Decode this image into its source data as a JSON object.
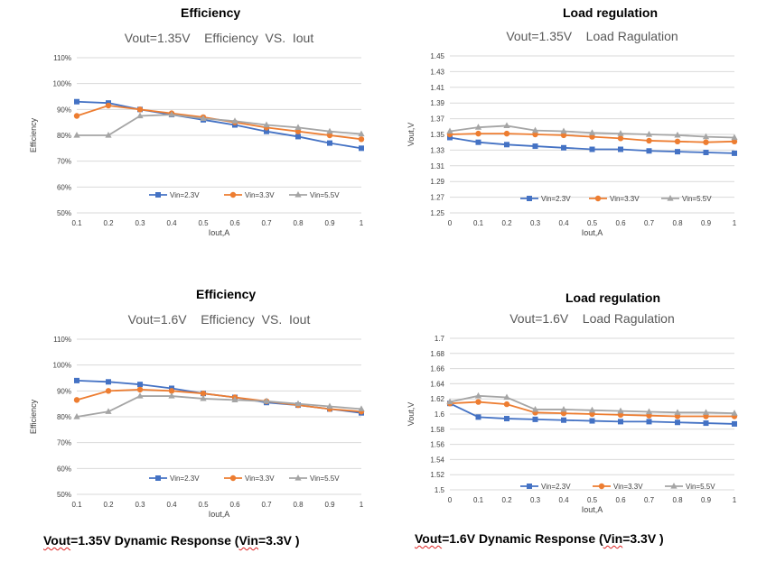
{
  "headings": [
    "Efficiency",
    "Load regulation",
    "Efficiency",
    "Load regulation"
  ],
  "captions": {
    "left": {
      "word": "Vout",
      "rest": "=1.35V Dynamic Response (",
      "vin": "Vin",
      "end": "=3.3V )"
    },
    "right": {
      "word": "Vout",
      "rest": "=1.6V Dynamic Response (",
      "vin": "Vin",
      "end": "=3.3V )"
    }
  },
  "colors": {
    "Vin=2.3V": "#4472c4",
    "Vin=3.3V": "#ed7d31",
    "Vin=5.5V": "#a5a5a5",
    "grid": "#d9d9d9",
    "title": "#595959"
  },
  "chart_data": [
    {
      "type": "line",
      "title": "Vout=1.35V    Efficiency  VS.  Iout",
      "xlabel": "Iout,A",
      "ylabel": "Efficiency",
      "x": [
        0.1,
        0.2,
        0.3,
        0.4,
        0.5,
        0.6,
        0.7,
        0.8,
        0.9,
        1
      ],
      "x_ticks": [
        "0.1",
        "0.2",
        "0.3",
        "0.4",
        "0.5",
        "0.6",
        "0.7",
        "0.8",
        "0.9",
        "1"
      ],
      "ylim": [
        0.5,
        1.1
      ],
      "y_ticks": [
        0.5,
        0.6,
        0.7,
        0.8,
        0.9,
        1.0,
        1.1
      ],
      "y_tick_labels": [
        "50%",
        "60%",
        "70%",
        "80%",
        "90%",
        "100%",
        "110%"
      ],
      "grid": true,
      "legend": "bottom-inside",
      "series": [
        {
          "name": "Vin=2.3V",
          "marker": "square",
          "values": [
            0.93,
            0.925,
            0.9,
            0.88,
            0.86,
            0.84,
            0.815,
            0.795,
            0.77,
            0.75
          ]
        },
        {
          "name": "Vin=3.3V",
          "marker": "circle",
          "values": [
            0.875,
            0.915,
            0.9,
            0.885,
            0.87,
            0.85,
            0.83,
            0.815,
            0.8,
            0.785
          ]
        },
        {
          "name": "Vin=5.5V",
          "marker": "triangle",
          "values": [
            0.8,
            0.8,
            0.875,
            0.88,
            0.865,
            0.855,
            0.84,
            0.83,
            0.815,
            0.805
          ]
        }
      ]
    },
    {
      "type": "line",
      "title": "Vout=1.35V    Load Ragulation",
      "xlabel": "Iout,A",
      "ylabel": "Vout,V",
      "x": [
        0,
        0.1,
        0.2,
        0.3,
        0.4,
        0.5,
        0.6,
        0.7,
        0.8,
        0.9,
        1
      ],
      "x_ticks": [
        "0",
        "0.1",
        "0.2",
        "0.3",
        "0.4",
        "0.5",
        "0.6",
        "0.7",
        "0.8",
        "0.9",
        "1"
      ],
      "ylim": [
        1.25,
        1.45
      ],
      "y_ticks": [
        1.25,
        1.27,
        1.29,
        1.31,
        1.33,
        1.35,
        1.37,
        1.39,
        1.41,
        1.43,
        1.45
      ],
      "y_tick_labels": [
        "1.25",
        "1.27",
        "1.29",
        "1.31",
        "1.33",
        "1.35",
        "1.37",
        "1.39",
        "1.41",
        "1.43",
        "1.45"
      ],
      "grid": true,
      "legend": "bottom-inside",
      "series": [
        {
          "name": "Vin=2.3V",
          "marker": "square",
          "values": [
            1.346,
            1.34,
            1.337,
            1.335,
            1.333,
            1.331,
            1.331,
            1.329,
            1.328,
            1.327,
            1.326
          ]
        },
        {
          "name": "Vin=3.3V",
          "marker": "circle",
          "values": [
            1.35,
            1.351,
            1.351,
            1.35,
            1.349,
            1.347,
            1.345,
            1.342,
            1.341,
            1.34,
            1.341
          ]
        },
        {
          "name": "Vin=5.5V",
          "marker": "triangle",
          "values": [
            1.354,
            1.359,
            1.361,
            1.355,
            1.354,
            1.352,
            1.351,
            1.35,
            1.349,
            1.347,
            1.346
          ]
        }
      ]
    },
    {
      "type": "line",
      "title": "Vout=1.6V    Efficiency  VS.  Iout",
      "xlabel": "Iout,A",
      "ylabel": "Efficiency",
      "x": [
        0.1,
        0.2,
        0.3,
        0.4,
        0.5,
        0.6,
        0.7,
        0.8,
        0.9,
        1
      ],
      "x_ticks": [
        "0.1",
        "0.2",
        "0.3",
        "0.4",
        "0.5",
        "0.6",
        "0.7",
        "0.8",
        "0.9",
        "1"
      ],
      "ylim": [
        0.5,
        1.1
      ],
      "y_ticks": [
        0.5,
        0.6,
        0.7,
        0.8,
        0.9,
        1.0,
        1.1
      ],
      "y_tick_labels": [
        "50%",
        "60%",
        "70%",
        "80%",
        "90%",
        "100%",
        "110%"
      ],
      "grid": true,
      "legend": "bottom-inside",
      "series": [
        {
          "name": "Vin=2.3V",
          "marker": "square",
          "values": [
            0.94,
            0.935,
            0.925,
            0.91,
            0.89,
            0.875,
            0.855,
            0.845,
            0.83,
            0.815
          ]
        },
        {
          "name": "Vin=3.3V",
          "marker": "circle",
          "values": [
            0.865,
            0.9,
            0.905,
            0.9,
            0.89,
            0.875,
            0.86,
            0.845,
            0.83,
            0.82
          ]
        },
        {
          "name": "Vin=5.5V",
          "marker": "triangle",
          "values": [
            0.8,
            0.82,
            0.88,
            0.88,
            0.87,
            0.865,
            0.86,
            0.85,
            0.84,
            0.83
          ]
        }
      ]
    },
    {
      "type": "line",
      "title": "Vout=1.6V    Load Ragulation",
      "xlabel": "Iout,A",
      "ylabel": "Vout,V",
      "x": [
        0,
        0.1,
        0.2,
        0.3,
        0.4,
        0.5,
        0.6,
        0.7,
        0.8,
        0.9,
        1
      ],
      "x_ticks": [
        "0",
        "0.1",
        "0.2",
        "0.3",
        "0.4",
        "0.5",
        "0.6",
        "0.7",
        "0.8",
        "0.9",
        "1"
      ],
      "ylim": [
        1.5,
        1.7
      ],
      "y_ticks": [
        1.5,
        1.52,
        1.54,
        1.56,
        1.58,
        1.6,
        1.62,
        1.64,
        1.66,
        1.68,
        1.7
      ],
      "y_tick_labels": [
        "1.5",
        "1.52",
        "1.54",
        "1.56",
        "1.58",
        "1.6",
        "1.62",
        "1.64",
        "1.66",
        "1.68",
        "1.7"
      ],
      "grid": true,
      "legend": "bottom-inside",
      "series": [
        {
          "name": "Vin=2.3V",
          "marker": "square",
          "values": [
            1.614,
            1.596,
            1.594,
            1.593,
            1.592,
            1.591,
            1.59,
            1.59,
            1.589,
            1.588,
            1.587
          ]
        },
        {
          "name": "Vin=3.3V",
          "marker": "circle",
          "values": [
            1.614,
            1.616,
            1.613,
            1.602,
            1.601,
            1.6,
            1.599,
            1.598,
            1.597,
            1.597,
            1.597
          ]
        },
        {
          "name": "Vin=5.5V",
          "marker": "triangle",
          "values": [
            1.616,
            1.624,
            1.622,
            1.606,
            1.606,
            1.605,
            1.604,
            1.603,
            1.602,
            1.602,
            1.601
          ]
        }
      ]
    }
  ]
}
